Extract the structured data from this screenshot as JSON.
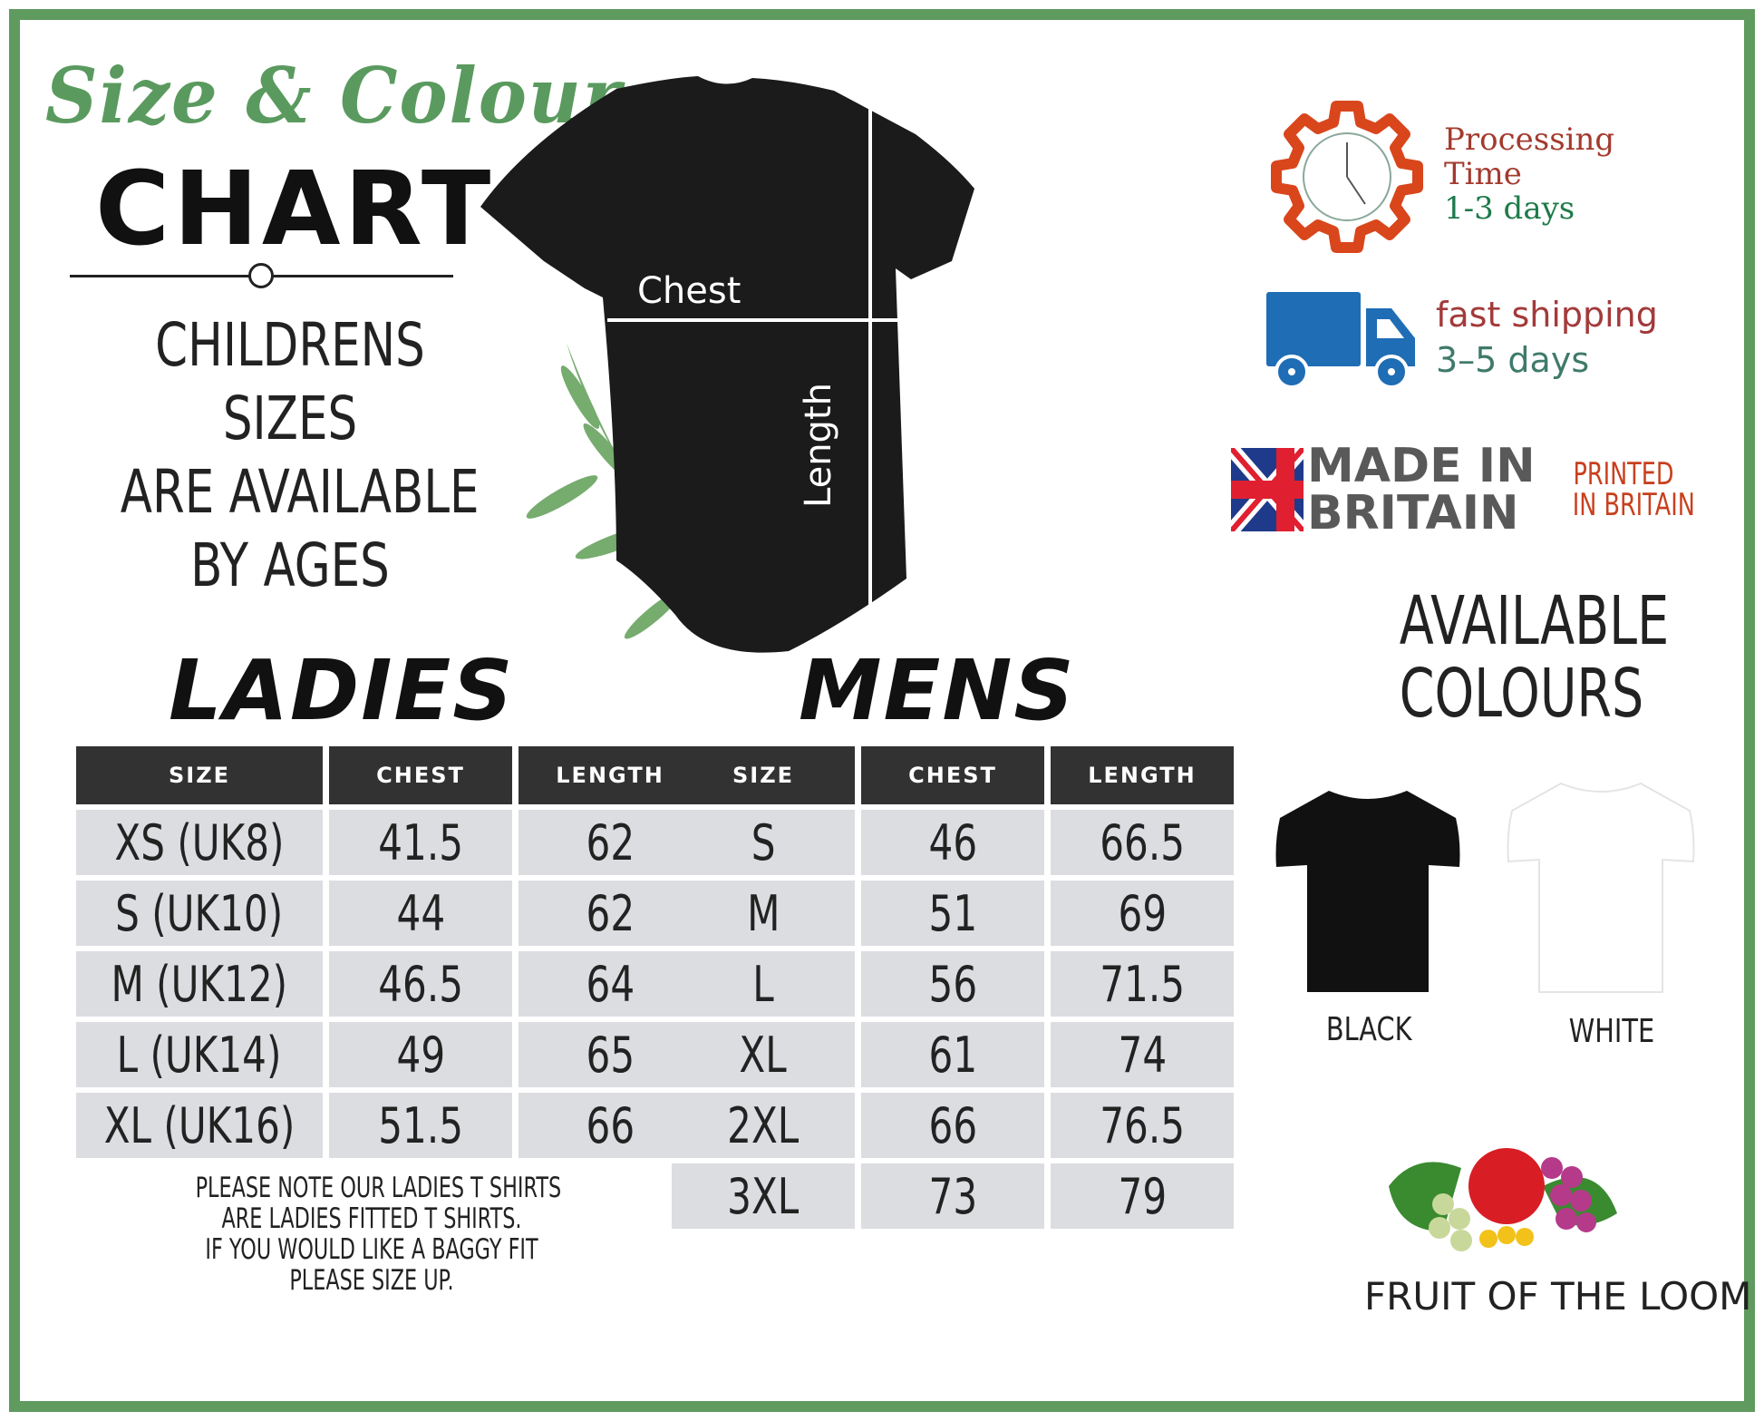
{
  "header": {
    "title_script": "Size & Colour",
    "title_main": "CHART",
    "childrens_lines": [
      "CHILDRENS",
      "SIZES",
      "ARE AVAILABLE",
      "BY AGES"
    ]
  },
  "tshirt_diagram": {
    "chest_label": "Chest",
    "length_label": "Length"
  },
  "ladies": {
    "heading": "LADIES",
    "columns": [
      "SIZE",
      "CHEST",
      "LENGTH"
    ],
    "rows": [
      {
        "size": "XS (UK8)",
        "chest": "41.5",
        "length": "62"
      },
      {
        "size": "S (UK10)",
        "chest": "44",
        "length": "62"
      },
      {
        "size": "M (UK12)",
        "chest": "46.5",
        "length": "64"
      },
      {
        "size": "L (UK14)",
        "chest": "49",
        "length": "65"
      },
      {
        "size": "XL (UK16)",
        "chest": "51.5",
        "length": "66"
      }
    ],
    "note_lines": [
      "PLEASE NOTE OUR LADIES T SHIRTS",
      "ARE LADIES FITTED T SHIRTS.",
      "IF YOU WOULD LIKE A BAGGY FIT",
      "PLEASE SIZE UP."
    ]
  },
  "mens": {
    "heading": "MENS",
    "columns": [
      "SIZE",
      "CHEST",
      "LENGTH"
    ],
    "rows": [
      {
        "size": "S",
        "chest": "46",
        "length": "66.5"
      },
      {
        "size": "M",
        "chest": "51",
        "length": "69"
      },
      {
        "size": "L",
        "chest": "56",
        "length": "71.5"
      },
      {
        "size": "XL",
        "chest": "61",
        "length": "74"
      },
      {
        "size": "2XL",
        "chest": "66",
        "length": "76.5"
      },
      {
        "size": "3XL",
        "chest": "73",
        "length": "79"
      }
    ]
  },
  "info": {
    "processing_label_1": "Processing",
    "processing_label_2": "Time",
    "processing_days": "1-3 days",
    "shipping_label": "fast shipping",
    "shipping_days": "3–5 days",
    "made_in_1": "MADE IN",
    "made_in_2": "BRITAIN",
    "printed_1": "PRINTED",
    "printed_2": "IN BRITAIN"
  },
  "colours": {
    "heading_lines": [
      "AVAILABLE",
      "COLOURS"
    ],
    "options": [
      {
        "name": "BLACK",
        "hex": "#111111"
      },
      {
        "name": "WHITE",
        "hex": "#ffffff"
      }
    ]
  },
  "brand": {
    "logo_text": "FRUIT OF THE LOOM"
  },
  "theme": {
    "frame_green": "#5f9a5e",
    "header_dark": "#323232",
    "cell_grey": "#dcdde1",
    "processing_red": "#a33a2e",
    "days_green": "#1e7a4a",
    "gear_orange": "#d9461c",
    "truck_blue": "#1f6db5"
  }
}
